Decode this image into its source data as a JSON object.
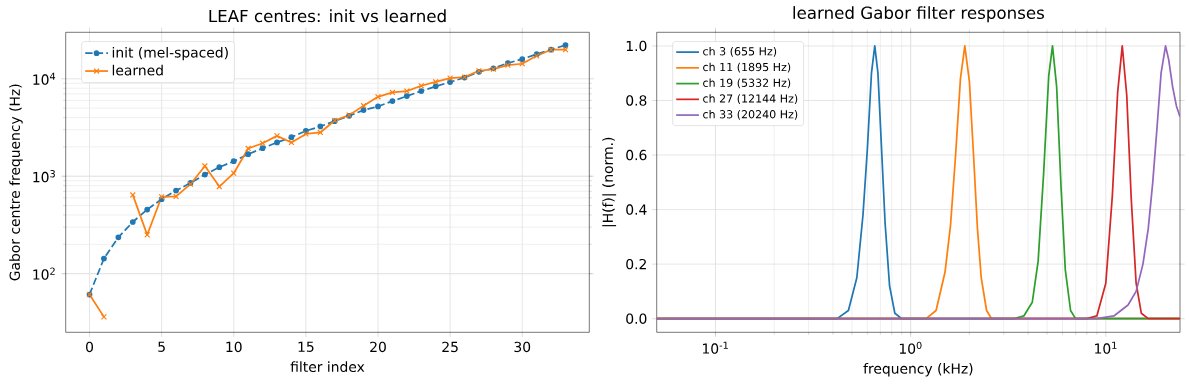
{
  "chart_data": [
    {
      "type": "line",
      "title": "LEAF centres: init vs learned",
      "xlabel": "filter index",
      "ylabel": "Gabor centre frequency (Hz)",
      "x": [
        0,
        1,
        2,
        3,
        4,
        5,
        6,
        7,
        8,
        9,
        10,
        11,
        12,
        13,
        14,
        15,
        16,
        17,
        18,
        19,
        20,
        21,
        22,
        23,
        24,
        25,
        26,
        27,
        28,
        29,
        30,
        31,
        32,
        33
      ],
      "series": [
        {
          "name": "init (mel-spaced)",
          "color": "#1f77b4",
          "marker": "circle",
          "line_style": "dashed",
          "values": [
            61,
            143,
            236,
            339,
            455,
            581,
            713,
            853,
            1040,
            1237,
            1425,
            1682,
            1940,
            2220,
            2515,
            2920,
            3245,
            3675,
            4165,
            4770,
            5200,
            5900,
            6640,
            7480,
            8360,
            9250,
            10300,
            11800,
            12800,
            14500,
            15900,
            17900,
            19900,
            22200
          ]
        },
        {
          "name": "learned",
          "color": "#ff7f0e",
          "marker": "cross",
          "line_style": "solid",
          "values": [
            61,
            36,
            null,
            643,
            250,
            615,
            620,
            828,
            1275,
            783,
            1074,
            1928,
            2183,
            2594,
            2220,
            2720,
            2813,
            3730,
            4235,
            5290,
            6530,
            7250,
            7480,
            8480,
            9310,
            10170,
            10400,
            12080,
            12580,
            13840,
            14270,
            17200,
            19900,
            19900
          ]
        }
      ],
      "log": "y",
      "xlim": [
        -1.65,
        34.65
      ],
      "ylim": [
        25,
        30000
      ],
      "xticks": [
        0,
        5,
        10,
        15,
        20,
        25,
        30
      ],
      "yticks": [
        {
          "value": 100,
          "label": "10$^{2}$"
        },
        {
          "value": 1000,
          "label": "10$^{3}$"
        },
        {
          "value": 10000,
          "label": "10$^{4}$"
        }
      ],
      "grid": true,
      "legend": "top left"
    },
    {
      "type": "line",
      "title": "learned Gabor filter responses",
      "xlabel": "frequency (kHz)",
      "ylabel": "|H(f)| (norm.)",
      "series": [
        {
          "name": "ch 3 (655 Hz)",
          "color": "#1f77b4",
          "x": [
            0.05,
            0.42,
            0.48,
            0.53,
            0.57,
            0.6,
            0.63,
            0.655,
            0.68,
            0.71,
            0.74,
            0.78,
            0.83,
            0.9,
            24
          ],
          "values": [
            0,
            0,
            0.03,
            0.15,
            0.38,
            0.62,
            0.9,
            1.0,
            0.9,
            0.62,
            0.35,
            0.12,
            0.02,
            0,
            0
          ]
        },
        {
          "name": "ch 11 (1895 Hz)",
          "color": "#ff7f0e",
          "x": [
            0.05,
            1.2,
            1.35,
            1.5,
            1.6,
            1.7,
            1.8,
            1.895,
            2.0,
            2.1,
            2.2,
            2.3,
            2.45,
            2.6,
            24
          ],
          "values": [
            0,
            0,
            0.03,
            0.17,
            0.34,
            0.6,
            0.88,
            1.0,
            0.87,
            0.6,
            0.33,
            0.15,
            0.03,
            0,
            0
          ]
        },
        {
          "name": "ch 19 (5332 Hz)",
          "color": "#2ca02c",
          "x": [
            0.05,
            3.4,
            3.8,
            4.2,
            4.5,
            4.8,
            5.1,
            5.332,
            5.6,
            5.9,
            6.2,
            6.6,
            7.0,
            24
          ],
          "values": [
            0,
            0,
            0.01,
            0.06,
            0.21,
            0.53,
            0.89,
            1.0,
            0.85,
            0.48,
            0.18,
            0.03,
            0,
            0
          ]
        },
        {
          "name": "ch 27 (12144 Hz)",
          "color": "#d62728",
          "x": [
            0.05,
            8,
            9,
            10,
            10.8,
            11.5,
            12.144,
            12.8,
            13.5,
            14.3,
            15.2,
            16.5,
            24
          ],
          "values": [
            0,
            0,
            0.01,
            0.13,
            0.45,
            0.83,
            1.0,
            0.82,
            0.44,
            0.13,
            0.02,
            0,
            0
          ]
        },
        {
          "name": "ch 33 (20240 Hz)",
          "color": "#9467bd",
          "x": [
            0.05,
            9,
            11,
            13,
            14.3,
            15.5,
            16.5,
            17.4,
            18.3,
            19.2,
            20.24,
            21,
            22,
            23,
            24
          ],
          "values": [
            0,
            0,
            0.01,
            0.05,
            0.1,
            0.2,
            0.33,
            0.5,
            0.7,
            0.9,
            1.0,
            0.95,
            0.85,
            0.78,
            0.74
          ]
        }
      ],
      "log": "x",
      "xlim": [
        0.05,
        24
      ],
      "ylim": [
        -0.05,
        1.05
      ],
      "xticks": [
        {
          "value": 0.1,
          "label": "10$^{-1}$"
        },
        {
          "value": 1,
          "label": "10$^{0}$"
        },
        {
          "value": 10,
          "label": "10$^{1}$"
        }
      ],
      "yticks": [
        {
          "value": 0,
          "label": "0.0"
        },
        0.2,
        0.4,
        0.6,
        0.8,
        {
          "value": 1,
          "label": "1.0"
        }
      ],
      "grid": true,
      "legend": "top left"
    }
  ]
}
